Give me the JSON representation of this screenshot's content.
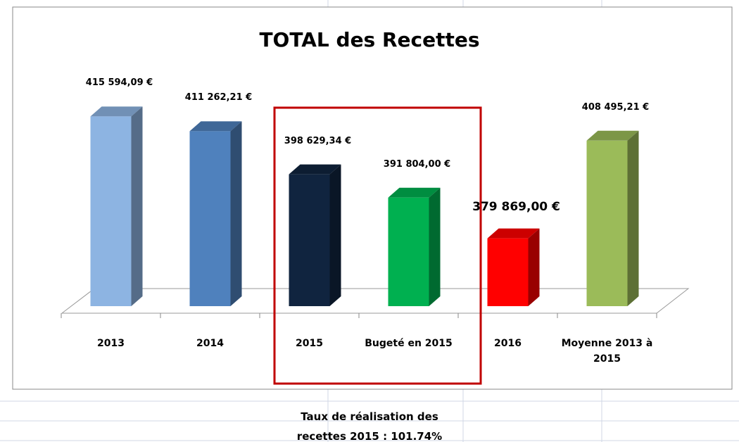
{
  "chart_data": {
    "type": "bar3d",
    "title": "TOTAL des Recettes",
    "categories": [
      "2013",
      "2014",
      "2015",
      "Bugeté en 2015",
      "2016",
      "Moyenne 2013 à 2015"
    ],
    "values": [
      415594.09,
      411262.21,
      398629.34,
      391804.0,
      379869.0,
      408495.21
    ],
    "value_labels": [
      "415 594,09 €",
      "411 262,21 €",
      "398 629,34 €",
      "391 804,00 €",
      "379 869,00 €",
      "408 495,21 €"
    ],
    "colors": [
      "#8db4e2",
      "#4f81bd",
      "#10243f",
      "#00b050",
      "#ff0000",
      "#9bbb59"
    ],
    "ylim": [
      360000,
      420000
    ],
    "annotation": "Taux de réalisation des recettes 2015 : 101.74%"
  }
}
